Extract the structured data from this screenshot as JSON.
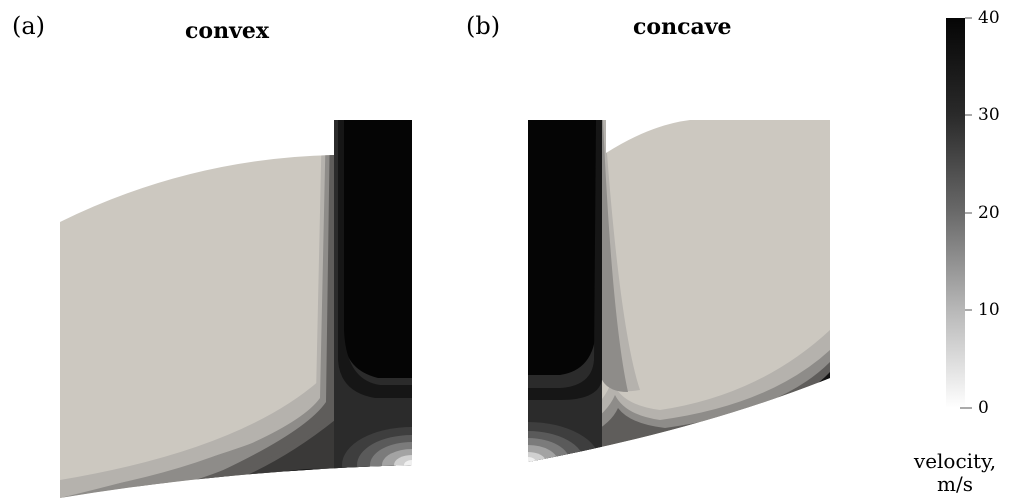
{
  "panels": [
    {
      "label": "(a)",
      "title": "convex"
    },
    {
      "label": "(b)",
      "title": "concave"
    }
  ],
  "colorbar": {
    "ticks": [
      "40",
      "30",
      "20",
      "10",
      "0"
    ],
    "title_line1": "velocity,",
    "title_line2": "m/s",
    "colors": {
      "max": "#0a0a0a",
      "min": "#ffffff",
      "background_field": "#ccc8c0"
    }
  }
}
